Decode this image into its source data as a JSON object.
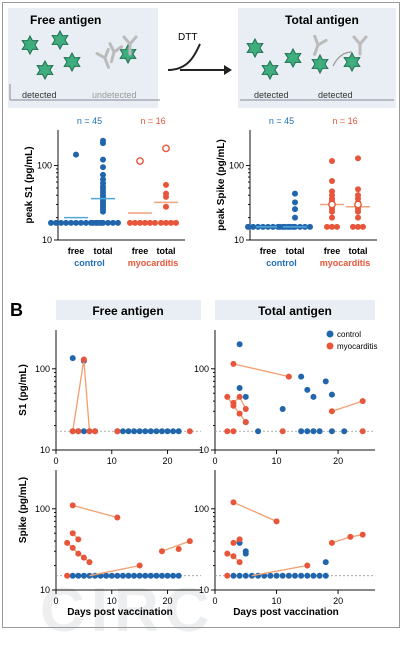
{
  "colors": {
    "control": "#2166ac",
    "myocarditis": "#e8553a",
    "antigen": "#3fae7f",
    "panel_bg": "#e8eef3",
    "label_blue": "#1f6fb8",
    "label_red": "#e8553a",
    "free_line": "#52a9d9"
  },
  "panel_a": {
    "letter": "A",
    "free_title": "Free antigen",
    "total_title": "Total antigen",
    "dtt": "DTT",
    "detected": "detected",
    "undetected": "undetected",
    "detected2": "detected",
    "detected3": "detected"
  },
  "panel_b": {
    "letter": "B",
    "free_title": "Free antigen",
    "total_title": "Total antigen",
    "legend_control": "control",
    "legend_myocarditis": "myocarditis",
    "xlabel": "Days post vaccination",
    "ylabel_s1": "S1 (pg/mL)",
    "ylabel_spike": "Spike (pg/mL)"
  },
  "watermark": "CIRC",
  "chart_data": [
    {
      "type": "scatter",
      "ylabel": "peak S1 (pg/mL)",
      "yscale": "log",
      "ylim": [
        10,
        300
      ],
      "categories": [
        "free",
        "total",
        "free",
        "total"
      ],
      "groups": [
        {
          "name": "control",
          "n": "n = 45"
        },
        {
          "name": "myocarditis",
          "n": "n = 16"
        }
      ],
      "yticks": [
        "10",
        "100"
      ],
      "series": [
        {
          "category": "free",
          "group": "control",
          "points": [
            140,
            17,
            17,
            17,
            17,
            17,
            17,
            17,
            17,
            17,
            17,
            17
          ],
          "median": 20
        },
        {
          "category": "total",
          "group": "control",
          "points": [
            215,
            200,
            120,
            95,
            75,
            65,
            58,
            52,
            48,
            44,
            40,
            37,
            34,
            32,
            30,
            28,
            26,
            24,
            17,
            17,
            17,
            17,
            17,
            17
          ],
          "median": 36
        },
        {
          "category": "free",
          "group": "myocarditis",
          "points": [
            17,
            17,
            17,
            17,
            17,
            17
          ],
          "median": 23
        },
        {
          "category": "total",
          "group": "myocarditis",
          "points": [
            55,
            42,
            38,
            28,
            17,
            17,
            17,
            17
          ],
          "median": 32
        },
        {
          "category": "free",
          "group": "myocarditis",
          "open_points": [
            115
          ]
        },
        {
          "category": "total",
          "group": "myocarditis",
          "open_points": [
            170
          ]
        }
      ]
    },
    {
      "type": "scatter",
      "ylabel": "peak Spike (pg/mL)",
      "yscale": "log",
      "ylim": [
        10,
        300
      ],
      "categories": [
        "free",
        "total",
        "free",
        "total"
      ],
      "groups": [
        {
          "name": "control",
          "n": "n = 45"
        },
        {
          "name": "myocarditis",
          "n": "n = 16"
        }
      ],
      "yticks": [
        "10",
        "100"
      ],
      "series": [
        {
          "category": "free",
          "group": "control",
          "points": [
            15,
            15,
            15,
            15,
            15,
            15,
            15,
            15,
            15,
            15
          ],
          "median": 15
        },
        {
          "category": "total",
          "group": "control",
          "points": [
            42,
            32,
            26,
            20,
            15,
            15,
            15,
            15,
            15,
            15,
            15
          ],
          "median": 15
        },
        {
          "category": "free",
          "group": "myocarditis",
          "points": [
            115,
            62,
            45,
            40,
            36,
            34,
            32,
            30,
            28,
            26,
            24,
            20,
            15,
            15,
            15
          ],
          "median": 30
        },
        {
          "category": "total",
          "group": "myocarditis",
          "points": [
            125,
            48,
            40,
            36,
            32,
            30,
            28,
            26,
            24,
            20,
            15,
            15,
            15
          ],
          "median": 28
        },
        {
          "category": "free",
          "group": "myocarditis",
          "open_points": [
            30
          ]
        },
        {
          "category": "total",
          "group": "myocarditis",
          "open_points": [
            30
          ]
        }
      ]
    },
    {
      "type": "line",
      "title": "Free antigen",
      "ylabel": "S1 (pg/mL)",
      "xlabel": "Days post vaccination",
      "yscale": "log",
      "ylim": [
        10,
        300
      ],
      "xlim": [
        0,
        26
      ],
      "xticks": [
        0,
        10,
        20
      ],
      "yticks": [
        "10",
        "100"
      ],
      "lod": 17,
      "series": [
        {
          "name": "control",
          "points": [
            [
              3,
              135
            ],
            [
              5,
              125
            ],
            [
              3,
              17
            ],
            [
              4,
              17
            ],
            [
              5,
              17
            ],
            [
              6,
              17
            ],
            [
              7,
              17
            ],
            [
              11,
              17
            ],
            [
              12,
              17
            ],
            [
              13,
              17
            ],
            [
              14,
              17
            ],
            [
              15,
              17
            ],
            [
              16,
              17
            ],
            [
              17,
              17
            ],
            [
              18,
              17
            ],
            [
              19,
              17
            ],
            [
              20,
              17
            ],
            [
              21,
              17
            ],
            [
              22,
              17
            ]
          ]
        },
        {
          "name": "myocarditis",
          "lines": [
            [
              [
                3,
                17
              ],
              [
                5,
                130
              ],
              [
                6,
                17
              ]
            ]
          ],
          "points": [
            [
              5,
              130
            ],
            [
              3,
              17
            ],
            [
              4,
              17
            ],
            [
              6,
              17
            ],
            [
              7,
              17
            ],
            [
              11,
              17
            ],
            [
              24,
              17
            ]
          ]
        }
      ]
    },
    {
      "type": "line",
      "title": "Total antigen",
      "ylabel": "S1 (pg/mL)",
      "xlabel": "Days post vaccination",
      "yscale": "log",
      "ylim": [
        10,
        300
      ],
      "xlim": [
        0,
        26
      ],
      "xticks": [
        0,
        10,
        20
      ],
      "yticks": [
        "10",
        "100"
      ],
      "lod": 17,
      "series": [
        {
          "name": "control",
          "points": [
            [
              4,
              200
            ],
            [
              4,
              58
            ],
            [
              5,
              45
            ],
            [
              5,
              22
            ],
            [
              7,
              17
            ],
            [
              11,
              32
            ],
            [
              14,
              80
            ],
            [
              15,
              55
            ],
            [
              16,
              45
            ],
            [
              18,
              70
            ],
            [
              19,
              48
            ],
            [
              14,
              17
            ],
            [
              15,
              17
            ],
            [
              16,
              17
            ],
            [
              17,
              17
            ],
            [
              19,
              17
            ],
            [
              21,
              17
            ]
          ]
        },
        {
          "name": "myocarditis",
          "lines": [
            [
              [
                3,
                115
              ],
              [
                12,
                80
              ]
            ],
            [
              [
                2,
                45
              ],
              [
                3,
                35
              ],
              [
                4,
                28
              ],
              [
                5,
                22
              ]
            ],
            [
              [
                19,
                30
              ],
              [
                24,
                40
              ]
            ],
            [
              [
                3,
                38
              ],
              [
                4,
                45
              ],
              [
                5,
                32
              ]
            ]
          ],
          "points": [
            [
              3,
              115
            ],
            [
              12,
              80
            ],
            [
              2,
              45
            ],
            [
              3,
              38
            ],
            [
              4,
              45
            ],
            [
              5,
              32
            ],
            [
              3,
              35
            ],
            [
              4,
              28
            ],
            [
              5,
              22
            ],
            [
              19,
              30
            ],
            [
              24,
              40
            ],
            [
              2,
              17
            ],
            [
              3,
              17
            ],
            [
              11,
              17
            ],
            [
              24,
              17
            ]
          ]
        }
      ]
    },
    {
      "type": "line",
      "title": "Free antigen",
      "ylabel": "Spike (pg/mL)",
      "xlabel": "Days post vaccination",
      "yscale": "log",
      "ylim": [
        10,
        300
      ],
      "xlim": [
        0,
        26
      ],
      "xticks": [
        0,
        10,
        20
      ],
      "yticks": [
        "10",
        "100"
      ],
      "lod": 15,
      "series": [
        {
          "name": "control",
          "points": [
            [
              3,
              15
            ],
            [
              4,
              15
            ],
            [
              5,
              15
            ],
            [
              6,
              15
            ],
            [
              7,
              15
            ],
            [
              8,
              15
            ],
            [
              9,
              15
            ],
            [
              10,
              15
            ],
            [
              11,
              15
            ],
            [
              12,
              15
            ],
            [
              13,
              15
            ],
            [
              14,
              15
            ],
            [
              15,
              15
            ],
            [
              16,
              15
            ],
            [
              17,
              15
            ],
            [
              18,
              15
            ],
            [
              19,
              15
            ],
            [
              20,
              15
            ],
            [
              21,
              15
            ],
            [
              22,
              15
            ]
          ]
        },
        {
          "name": "myocarditis",
          "lines": [
            [
              [
                3,
                110
              ],
              [
                11,
                78
              ]
            ],
            [
              [
                2,
                38
              ],
              [
                3,
                33
              ],
              [
                4,
                28
              ],
              [
                5,
                25
              ],
              [
                6,
                22
              ]
            ],
            [
              [
                6,
                15
              ],
              [
                15,
                20
              ]
            ],
            [
              [
                19,
                30
              ],
              [
                24,
                40
              ]
            ],
            [
              [
                3,
                50
              ],
              [
                4,
                42
              ]
            ]
          ],
          "points": [
            [
              3,
              110
            ],
            [
              11,
              78
            ],
            [
              2,
              38
            ],
            [
              3,
              33
            ],
            [
              4,
              28
            ],
            [
              5,
              25
            ],
            [
              6,
              22
            ],
            [
              3,
              50
            ],
            [
              4,
              42
            ],
            [
              15,
              20
            ],
            [
              19,
              30
            ],
            [
              22,
              32
            ],
            [
              24,
              40
            ],
            [
              2,
              15
            ]
          ]
        }
      ]
    },
    {
      "type": "line",
      "title": "Total antigen",
      "ylabel": "Spike (pg/mL)",
      "xlabel": "Days post vaccination",
      "yscale": "log",
      "ylim": [
        10,
        300
      ],
      "xlim": [
        0,
        26
      ],
      "xticks": [
        0,
        10,
        20
      ],
      "yticks": [
        "10",
        "100"
      ],
      "lod": 15,
      "series": [
        {
          "name": "control",
          "points": [
            [
              4,
              38
            ],
            [
              5,
              30
            ],
            [
              5,
              28
            ],
            [
              18,
              22
            ],
            [
              3,
              15
            ],
            [
              4,
              15
            ],
            [
              5,
              15
            ],
            [
              6,
              15
            ],
            [
              7,
              15
            ],
            [
              8,
              15
            ],
            [
              9,
              15
            ],
            [
              10,
              15
            ],
            [
              11,
              15
            ],
            [
              12,
              15
            ],
            [
              13,
              15
            ],
            [
              14,
              15
            ],
            [
              15,
              15
            ],
            [
              16,
              15
            ],
            [
              17,
              15
            ],
            [
              18,
              15
            ]
          ]
        },
        {
          "name": "myocarditis",
          "lines": [
            [
              [
                3,
                120
              ],
              [
                10,
                70
              ]
            ],
            [
              [
                2,
                28
              ],
              [
                3,
                26
              ],
              [
                4,
                22
              ]
            ],
            [
              [
                6,
                15
              ],
              [
                15,
                20
              ]
            ],
            [
              [
                19,
                38
              ],
              [
                22,
                45
              ],
              [
                24,
                48
              ]
            ],
            [
              [
                3,
                38
              ],
              [
                4,
                42
              ]
            ]
          ],
          "points": [
            [
              3,
              120
            ],
            [
              10,
              70
            ],
            [
              2,
              28
            ],
            [
              3,
              26
            ],
            [
              4,
              22
            ],
            [
              3,
              38
            ],
            [
              4,
              42
            ],
            [
              15,
              20
            ],
            [
              19,
              38
            ],
            [
              22,
              45
            ],
            [
              24,
              48
            ],
            [
              2,
              15
            ]
          ]
        }
      ]
    }
  ]
}
